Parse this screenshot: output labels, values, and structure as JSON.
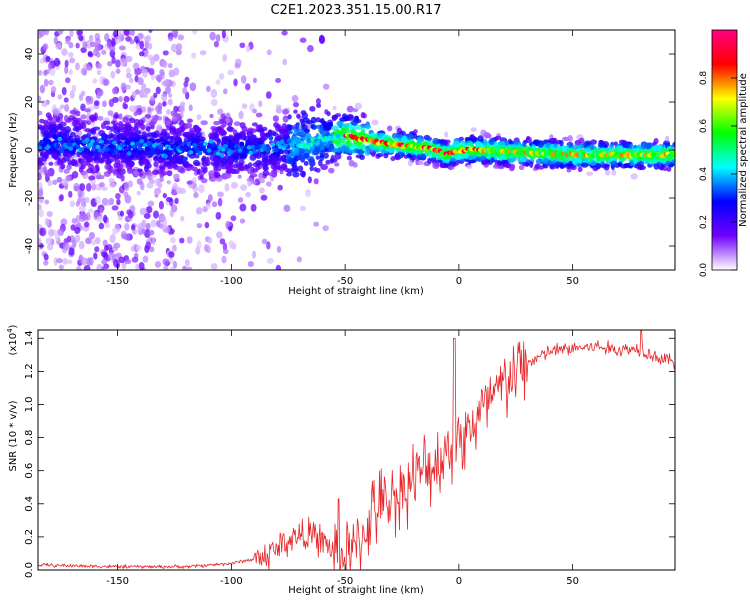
{
  "title": "C2E1.2023.351.15.00.R17",
  "chart_data": [
    {
      "type": "heatmap",
      "name": "spectrogram",
      "xlabel": "Height of straight line (km)",
      "ylabel": "Frequency (Hz)",
      "xlim": [
        -185,
        95
      ],
      "ylim": [
        -50,
        50
      ],
      "xticks": [
        -150,
        -100,
        -50,
        0,
        50
      ],
      "xtick_labels": [
        "-150",
        "-100",
        "-50",
        "0",
        "50"
      ],
      "yticks": [
        -40,
        -20,
        0,
        20,
        40
      ],
      "ytick_labels": [
        "-40",
        "-20",
        "0",
        "20",
        "40"
      ],
      "ridge": {
        "x": [
          -185,
          -160,
          -130,
          -100,
          -80,
          -65,
          -55,
          -50,
          -45,
          -35,
          -25,
          -15,
          -10,
          -5,
          0,
          10,
          25,
          50,
          70,
          95
        ],
        "y": [
          3,
          2,
          1,
          0,
          1,
          3,
          5,
          6,
          5,
          3,
          2,
          1,
          0,
          -2,
          0,
          0,
          -1,
          -2,
          -2,
          -2
        ]
      },
      "colorbar": {
        "label": "Normalized spectral amplitude",
        "range": [
          0,
          1
        ],
        "ticks": [
          0.0,
          0.2,
          0.4,
          0.6,
          0.8
        ],
        "tick_labels": [
          "0.0",
          "0.2",
          "0.4",
          "0.6",
          "0.8"
        ],
        "colors": [
          "#ffffff",
          "#7000ff",
          "#0000ff",
          "#00ffff",
          "#00ff00",
          "#ffff00",
          "#ff0000",
          "#ff0080"
        ]
      }
    },
    {
      "type": "line",
      "name": "snr",
      "xlabel": "Height of straight line (km)",
      "ylabel": "SNR (10 * v/v)",
      "yscale_label": "(x10",
      "yscale_exp": "4",
      "yscale_close": ")",
      "xlim": [
        -185,
        95
      ],
      "ylim": [
        0,
        1.45
      ],
      "xticks": [
        -150,
        -100,
        -50,
        0,
        50
      ],
      "xtick_labels": [
        "-150",
        "-100",
        "-50",
        "0",
        "50"
      ],
      "yticks": [
        0,
        0.2,
        0.4,
        0.6,
        0.8,
        1.0,
        1.2,
        1.4
      ],
      "ytick_labels": [
        "0.0",
        "0.2",
        "0.4",
        "0.6",
        "0.8",
        "1.0",
        "1.2",
        "1.4"
      ],
      "color": "#e8272a",
      "trend": {
        "x": [
          -185,
          -150,
          -120,
          -100,
          -85,
          -75,
          -68,
          -60,
          -52,
          -45,
          -38,
          -30,
          -20,
          -10,
          -5,
          0,
          5,
          10,
          20,
          30,
          40,
          50,
          60,
          70,
          80,
          85,
          90,
          95
        ],
        "y": [
          0.03,
          0.02,
          0.02,
          0.04,
          0.08,
          0.18,
          0.22,
          0.18,
          0.06,
          0.12,
          0.35,
          0.42,
          0.55,
          0.65,
          0.72,
          0.78,
          0.85,
          0.95,
          1.12,
          1.25,
          1.32,
          1.34,
          1.35,
          1.33,
          1.34,
          1.3,
          1.27,
          1.26
        ]
      },
      "peaks": [
        {
          "x": -2,
          "y": 1.4
        },
        {
          "x": 80,
          "y": 1.45
        },
        {
          "x": -53,
          "y": 0.43
        }
      ]
    }
  ]
}
